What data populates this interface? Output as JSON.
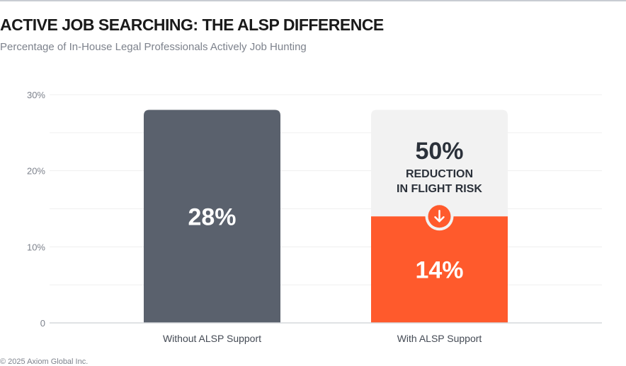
{
  "title": "ACTIVE JOB SEARCHING: THE ALSP DIFFERENCE",
  "subtitle": "Percentage of In-House Legal Professionals Actively Job Hunting",
  "footer": "© 2025 Axiom Global Inc.",
  "chart_data": {
    "type": "bar",
    "categories": [
      "Without ALSP Support",
      "With ALSP Support"
    ],
    "values": [
      28,
      14
    ],
    "value_labels": [
      "28%",
      "14%"
    ],
    "colors": [
      "#5a616d",
      "#ff5a2c"
    ],
    "ylim": [
      0,
      30
    ],
    "yticks": [
      0,
      10,
      20,
      30
    ],
    "ytick_labels": [
      "0",
      "10%",
      "20%",
      "30%"
    ],
    "grid": true,
    "annotation": {
      "value": "50%",
      "line1": "REDUCTION",
      "line2": "IN FLIGHT RISK",
      "icon": "arrow-down-icon",
      "background": "#f2f2f2"
    }
  }
}
